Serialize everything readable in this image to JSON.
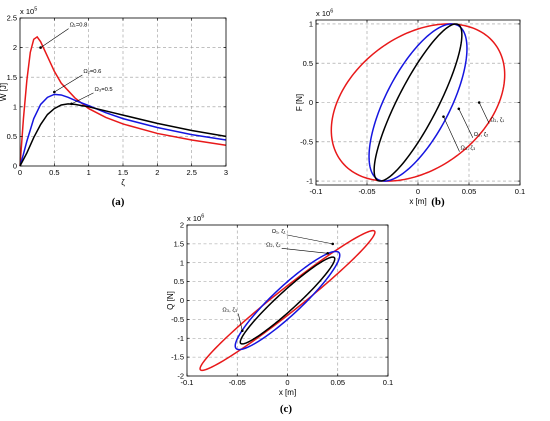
{
  "chart_data": [
    {
      "type": "line",
      "panel_label": "(a)",
      "xlabel": "ζ",
      "ylabel": "W [J]",
      "y_multiplier": "x 10",
      "y_multiplier_exp": "5",
      "xlim": [
        0,
        3
      ],
      "ylim": [
        0,
        2.5
      ],
      "xticks": [
        0,
        0.5,
        1,
        1.5,
        2,
        2.5,
        3
      ],
      "xtick_labels": [
        "0",
        "0.5",
        "1",
        "1.5",
        "2",
        "2.5",
        "3"
      ],
      "yticks": [
        0,
        0.5,
        1,
        1.5,
        2,
        2.5
      ],
      "ytick_labels": [
        "0",
        "0.5",
        "1",
        "1.5",
        "2",
        "2.5"
      ],
      "grid": true,
      "series": [
        {
          "name": "Ω₁=0.8",
          "color": "#e8191a",
          "peak": [
            0.25,
            2.18
          ],
          "x": [
            0,
            0.05,
            0.1,
            0.15,
            0.2,
            0.25,
            0.3,
            0.4,
            0.5,
            0.6,
            0.8,
            1,
            1.25,
            1.5,
            2,
            2.5,
            3
          ],
          "y": [
            0,
            0.8,
            1.45,
            1.92,
            2.14,
            2.18,
            2.1,
            1.85,
            1.6,
            1.4,
            1.15,
            0.97,
            0.82,
            0.71,
            0.55,
            0.44,
            0.35
          ]
        },
        {
          "name": "Ω₂=0.6",
          "color": "#1515e0",
          "peak": [
            0.55,
            1.22
          ],
          "x": [
            0,
            0.05,
            0.1,
            0.2,
            0.3,
            0.4,
            0.5,
            0.6,
            0.7,
            0.8,
            1,
            1.25,
            1.5,
            2,
            2.5,
            3
          ],
          "y": [
            0,
            0.2,
            0.42,
            0.8,
            1.04,
            1.16,
            1.21,
            1.2,
            1.16,
            1.11,
            1.02,
            0.9,
            0.8,
            0.65,
            0.53,
            0.44
          ]
        },
        {
          "name": "Ω₃=0.5",
          "color": "#000000",
          "peak": [
            0.8,
            1.05
          ],
          "x": [
            0,
            0.1,
            0.2,
            0.3,
            0.4,
            0.5,
            0.6,
            0.7,
            0.8,
            0.9,
            1,
            1.25,
            1.5,
            2,
            2.5,
            3
          ],
          "y": [
            0,
            0.22,
            0.48,
            0.7,
            0.87,
            0.97,
            1.03,
            1.05,
            1.04,
            1.02,
            1.0,
            0.93,
            0.86,
            0.72,
            0.6,
            0.5
          ]
        }
      ],
      "annotations": [
        {
          "text": "Ω₁=0.8",
          "at": [
            0.3,
            2.0
          ]
        },
        {
          "text": "Ω₂=0.6",
          "at": [
            0.5,
            1.25
          ]
        },
        {
          "text": "Ω₃=0.5",
          "at": [
            0.75,
            1.05
          ]
        }
      ]
    },
    {
      "type": "line",
      "panel_label": "(b)",
      "xlabel": "x [m]",
      "ylabel": "F [N]",
      "y_multiplier": "x 10",
      "y_multiplier_exp": "6",
      "xlim": [
        -0.1,
        0.1
      ],
      "ylim": [
        -1.05,
        1.05
      ],
      "xticks": [
        -0.1,
        -0.05,
        0,
        0.05,
        0.1
      ],
      "xtick_labels": [
        "-0.1",
        "-0.05",
        "0",
        "0.05",
        "0.1"
      ],
      "yticks": [
        -1,
        -0.5,
        0,
        0.5,
        1
      ],
      "ytick_labels": [
        "-1",
        "-0.5",
        "0",
        "0.5",
        "1"
      ],
      "grid": true,
      "series": [
        {
          "name": "Ω₁, ζ₁",
          "color": "#e8191a",
          "shape": "ellipse",
          "center": [
            0,
            0
          ],
          "x_amplitude": 0.085,
          "y_amplitude": 1.0,
          "x_at_ymax": 0.03
        },
        {
          "name": "Ω₂, ζ₂",
          "color": "#1515e0",
          "shape": "ellipse",
          "center": [
            0,
            0
          ],
          "x_amplitude": 0.048,
          "y_amplitude": 1.0,
          "x_at_ymax": 0.033
        },
        {
          "name": "Ω₃, ζ₃",
          "color": "#000000",
          "shape": "ellipse",
          "center": [
            0,
            0
          ],
          "x_amplitude": 0.043,
          "y_amplitude": 1.0,
          "x_at_ymax": 0.037
        }
      ],
      "annotations": [
        {
          "text": "Ω₁, ζ₁",
          "at": [
            0.06,
            0.0
          ]
        },
        {
          "text": "Ω₂, ζ₂",
          "at": [
            0.04,
            -0.08
          ]
        },
        {
          "text": "Ω₃, ζ₃",
          "at": [
            0.025,
            -0.18
          ]
        }
      ]
    },
    {
      "type": "line",
      "panel_label": "(c)",
      "xlabel": "x [m]",
      "ylabel": "Q [N]",
      "y_multiplier": "x 10",
      "y_multiplier_exp": "6",
      "xlim": [
        -0.1,
        0.1
      ],
      "ylim": [
        -2,
        2
      ],
      "xticks": [
        -0.1,
        -0.05,
        0,
        0.05,
        0.1
      ],
      "xtick_labels": [
        "-0.1",
        "-0.05",
        "0",
        "0.05",
        "0.1"
      ],
      "yticks": [
        -2,
        -1.5,
        -1,
        -0.5,
        0,
        0.5,
        1,
        1.5,
        2
      ],
      "ytick_labels": [
        "-2",
        "-1.5",
        "-1",
        "-0.5",
        "0",
        "0.5",
        "1",
        "1.5",
        "2"
      ],
      "grid": true,
      "series": [
        {
          "name": "Ω₁, ζ₁",
          "color": "#e8191a",
          "shape": "ellipse",
          "center": [
            0,
            0
          ],
          "x_amplitude": 0.087,
          "y_amplitude": 1.85,
          "x_at_ymax": 0.085
        },
        {
          "name": "Ω₂, ζ₂",
          "color": "#1515e0",
          "shape": "ellipse",
          "center": [
            0,
            0
          ],
          "x_amplitude": 0.052,
          "y_amplitude": 1.3,
          "x_at_ymax": 0.048
        },
        {
          "name": "Ω₃, ζ₃",
          "color": "#000000",
          "shape": "ellipse",
          "center": [
            0,
            0
          ],
          "x_amplitude": 0.047,
          "y_amplitude": 1.15,
          "x_at_ymax": 0.045
        }
      ],
      "annotations": [
        {
          "text": "Ω₁, ζ₁",
          "at": [
            0.045,
            1.5
          ]
        },
        {
          "text": "Ω₂, ζ₂",
          "at": [
            0.04,
            1.25
          ]
        },
        {
          "text": "Ω₃, ζ₃",
          "at": [
            -0.045,
            -0.8
          ]
        }
      ]
    }
  ]
}
